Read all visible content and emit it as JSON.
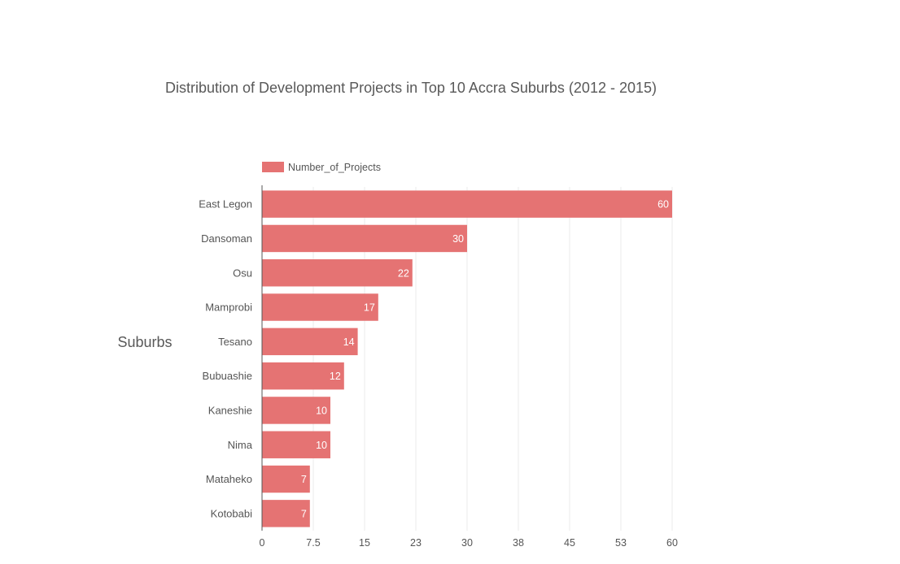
{
  "chart_data": {
    "type": "bar",
    "orientation": "horizontal",
    "title": "Distribution of Development Projects  in Top 10 Accra Suburbs (2012 - 2015)",
    "xlabel": "",
    "ylabel": "Suburbs",
    "legend": {
      "position": "top-left",
      "entries": [
        "Number_of_Projects"
      ]
    },
    "categories": [
      "East Legon",
      "Dansoman",
      "Osu",
      "Mamprobi",
      "Tesano",
      "Bubuashie",
      "Kaneshie",
      "Nima",
      "Mataheko",
      "Kotobabi"
    ],
    "series": [
      {
        "name": "Number_of_Projects",
        "values": [
          60,
          30,
          22,
          17,
          14,
          12,
          10,
          10,
          7,
          7
        ]
      }
    ],
    "xlim": [
      0,
      60
    ],
    "x_ticks": [
      "0",
      "7.5",
      "15",
      "23",
      "30",
      "38",
      "45",
      "53",
      "60"
    ],
    "x_tick_values": [
      0,
      7.5,
      15,
      22.5,
      30,
      37.5,
      45,
      52.5,
      60
    ],
    "grid": "vertical",
    "bar_color": "#e57373",
    "data_labels": true
  }
}
